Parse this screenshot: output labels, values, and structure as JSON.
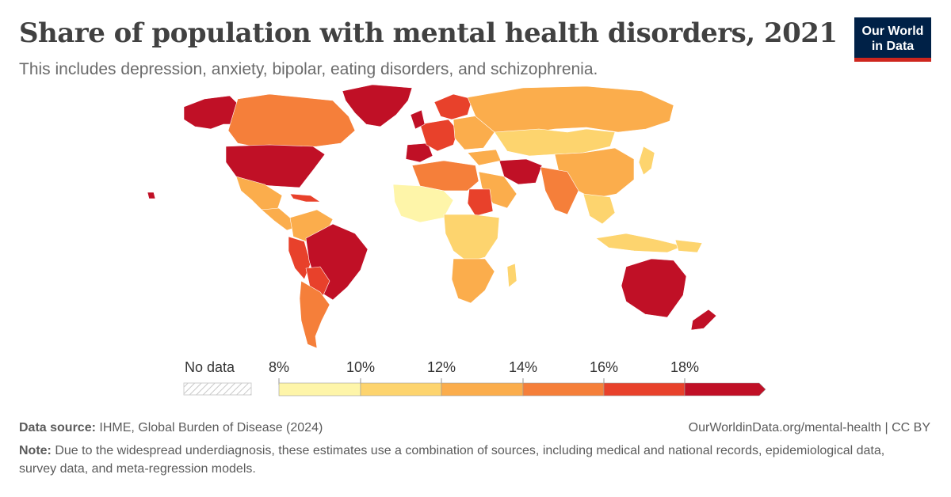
{
  "header": {
    "title": "Share of population with mental health disorders, 2021",
    "subtitle": "This includes depression, anxiety, bipolar, eating disorders, and schizophrenia."
  },
  "logo": {
    "line1": "Our World",
    "line2": "in Data"
  },
  "legend": {
    "no_data_label": "No data",
    "ticks": [
      "8%",
      "10%",
      "12%",
      "14%",
      "16%",
      "18%"
    ],
    "bins": [
      {
        "from": 8,
        "to": 10,
        "color": "#fef5a9"
      },
      {
        "from": 10,
        "to": 12,
        "color": "#fdd46e"
      },
      {
        "from": 12,
        "to": 14,
        "color": "#fbad4c"
      },
      {
        "from": 14,
        "to": 16,
        "color": "#f57f3a"
      },
      {
        "from": 16,
        "to": 18,
        "color": "#e8412b"
      },
      {
        "from": 18,
        "to": null,
        "color": "#c01026"
      }
    ]
  },
  "footer": {
    "source_label": "Data source:",
    "source_text": "IHME, Global Burden of Disease (2024)",
    "url": "OurWorldinData.org/mental-health | CC BY",
    "note_label": "Note:",
    "note_text": "Due to the widespread underdiagnosis, these estimates use a combination of sources, including medical and national records, epidemiological data, survey data, and meta-regression models."
  }
}
